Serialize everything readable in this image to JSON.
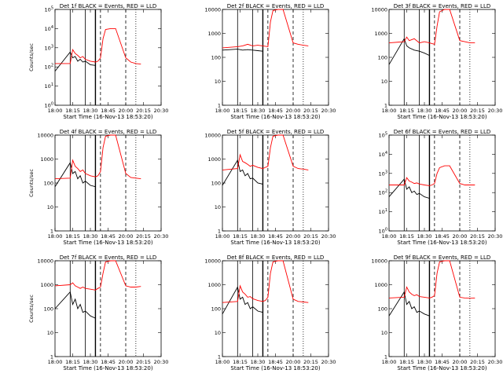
{
  "chart_data": [
    {
      "type": "line",
      "title": "Det 1f BLACK = Events, RED = LLD",
      "xlabel": "Start Time (16-Nov-13 18:53:20)",
      "ylabel": "Counts/sec",
      "yscale": "log",
      "x_ticks": [
        "18:00",
        "18:15",
        "18:30",
        "18:45",
        "20:00",
        "20:15",
        "20:30"
      ],
      "y_ticks": [
        "10^0",
        "10^1",
        "10^2",
        "10^3",
        "10^4",
        "10^5"
      ],
      "ylim": [
        1,
        100000
      ],
      "series": [
        {
          "color": "#000000",
          "x": [
            0,
            0.3,
            0.35,
            0.4,
            0.45,
            0.5,
            0.55,
            0.6,
            0.7,
            0.8
          ],
          "y": [
            60,
            600,
            300,
            350,
            200,
            250,
            180,
            200,
            130,
            120
          ]
        },
        {
          "color": "#ff0000",
          "x": [
            0,
            0.3,
            0.35,
            0.4,
            0.45,
            0.5,
            0.55,
            0.6,
            0.7,
            0.8,
            0.85,
            0.9,
            0.95,
            1.0,
            1.1,
            1.2,
            1.4,
            1.5,
            1.6,
            1.7
          ],
          "y": [
            150,
            150,
            800,
            500,
            400,
            300,
            350,
            250,
            200,
            180,
            200,
            300,
            3000,
            9000,
            10000,
            10000,
            300,
            180,
            150,
            140
          ]
        }
      ]
    },
    {
      "type": "line",
      "title": "Det 2f BLACK = Events, RED = LLD",
      "xlabel": "Start Time (16-Nov-13 18:53:20)",
      "ylabel": "",
      "yscale": "log",
      "x_ticks": [
        "18:00",
        "18:15",
        "18:30",
        "18:45",
        "20:00",
        "20:15",
        "20:30"
      ],
      "y_ticks": [
        "1",
        "10",
        "100",
        "1000",
        "10000"
      ],
      "ylim": [
        1,
        10000
      ],
      "series": [
        {
          "color": "#000000",
          "x": [
            0,
            0.3,
            0.4,
            0.5,
            0.6,
            0.7,
            0.8
          ],
          "y": [
            200,
            220,
            200,
            210,
            200,
            190,
            180
          ]
        },
        {
          "color": "#ff0000",
          "x": [
            0,
            0.3,
            0.4,
            0.5,
            0.6,
            0.7,
            0.8,
            0.9,
            0.95,
            1.0,
            1.1,
            1.2,
            1.4,
            1.5,
            1.6,
            1.7
          ],
          "y": [
            250,
            280,
            300,
            350,
            300,
            320,
            300,
            280,
            3000,
            9000,
            10000,
            10000,
            400,
            350,
            320,
            300
          ]
        }
      ]
    },
    {
      "type": "line",
      "title": "Det 3f BLACK = Events, RED = LLD",
      "xlabel": "Start Time (16-Nov-13 18:53:20)",
      "ylabel": "",
      "yscale": "log",
      "x_ticks": [
        "18:00",
        "18:15",
        "18:30",
        "18:45",
        "20:00",
        "20:15",
        "20:30"
      ],
      "y_ticks": [
        "1",
        "10",
        "100",
        "1000",
        "10000"
      ],
      "ylim": [
        1,
        10000
      ],
      "series": [
        {
          "color": "#000000",
          "x": [
            0,
            0.3,
            0.35,
            0.4,
            0.5,
            0.6,
            0.7,
            0.8
          ],
          "y": [
            50,
            600,
            300,
            250,
            200,
            180,
            150,
            120
          ]
        },
        {
          "color": "#ff0000",
          "x": [
            0,
            0.3,
            0.35,
            0.4,
            0.5,
            0.6,
            0.7,
            0.8,
            0.9,
            0.95,
            1.0,
            1.1,
            1.2,
            1.4,
            1.5,
            1.6,
            1.7
          ],
          "y": [
            400,
            450,
            700,
            500,
            600,
            400,
            450,
            400,
            350,
            2000,
            8000,
            10000,
            10000,
            500,
            450,
            400,
            400
          ]
        }
      ]
    },
    {
      "type": "line",
      "title": "Det 4f BLACK = Events, RED = LLD",
      "xlabel": "Start Time (16-Nov-13 18:53:20)",
      "ylabel": "Counts/sec",
      "yscale": "log",
      "x_ticks": [
        "18:00",
        "18:15",
        "18:30",
        "18:45",
        "20:00",
        "20:15",
        "20:30"
      ],
      "y_ticks": [
        "1",
        "10",
        "100",
        "1000",
        "10000"
      ],
      "ylim": [
        1,
        10000
      ],
      "series": [
        {
          "color": "#000000",
          "x": [
            0,
            0.3,
            0.35,
            0.4,
            0.45,
            0.5,
            0.55,
            0.6,
            0.7,
            0.8
          ],
          "y": [
            70,
            700,
            250,
            300,
            150,
            200,
            100,
            120,
            80,
            70
          ]
        },
        {
          "color": "#ff0000",
          "x": [
            0,
            0.3,
            0.35,
            0.4,
            0.45,
            0.5,
            0.55,
            0.6,
            0.7,
            0.8,
            0.85,
            0.9,
            0.95,
            1.0,
            1.1,
            1.2,
            1.4,
            1.5,
            1.6,
            1.7
          ],
          "y": [
            150,
            160,
            900,
            500,
            400,
            300,
            350,
            250,
            200,
            180,
            200,
            300,
            3000,
            9000,
            10000,
            10000,
            250,
            170,
            160,
            150
          ]
        }
      ]
    },
    {
      "type": "line",
      "title": "Det 5f BLACK = Events, RED = LLD",
      "xlabel": "Start Time (16-Nov-13 18:53:20)",
      "ylabel": "",
      "yscale": "log",
      "x_ticks": [
        "18:00",
        "18:15",
        "18:30",
        "18:45",
        "20:00",
        "20:15",
        "20:30"
      ],
      "y_ticks": [
        "1",
        "10",
        "100",
        "1000",
        "10000"
      ],
      "ylim": [
        1,
        10000
      ],
      "series": [
        {
          "color": "#000000",
          "x": [
            0,
            0.3,
            0.35,
            0.4,
            0.45,
            0.5,
            0.55,
            0.6,
            0.7,
            0.8
          ],
          "y": [
            80,
            900,
            300,
            350,
            200,
            250,
            150,
            160,
            100,
            90
          ]
        },
        {
          "color": "#ff0000",
          "x": [
            0,
            0.3,
            0.35,
            0.4,
            0.45,
            0.5,
            0.55,
            0.6,
            0.7,
            0.8,
            0.85,
            0.9,
            0.95,
            1.0,
            1.1,
            1.2,
            1.4,
            1.5,
            1.6,
            1.7
          ],
          "y": [
            350,
            400,
            1500,
            800,
            700,
            600,
            500,
            550,
            450,
            400,
            450,
            500,
            3000,
            9000,
            10000,
            10000,
            500,
            400,
            380,
            350
          ]
        }
      ]
    },
    {
      "type": "line",
      "title": "Det 6f BLACK = Events, RED = LLD",
      "xlabel": "Start Time (16-Nov-13 18:53:20)",
      "ylabel": "",
      "yscale": "log",
      "x_ticks": [
        "18:00",
        "18:15",
        "18:30",
        "18:45",
        "20:00",
        "20:15",
        "20:30"
      ],
      "y_ticks": [
        "10^0",
        "10^1",
        "10^2",
        "10^3",
        "10^4",
        "10^5"
      ],
      "ylim": [
        1,
        100000
      ],
      "series": [
        {
          "color": "#000000",
          "x": [
            0,
            0.3,
            0.35,
            0.4,
            0.45,
            0.5,
            0.55,
            0.6,
            0.7,
            0.8
          ],
          "y": [
            60,
            500,
            150,
            200,
            100,
            120,
            80,
            90,
            60,
            50
          ]
        },
        {
          "color": "#ff0000",
          "x": [
            0,
            0.3,
            0.35,
            0.4,
            0.45,
            0.5,
            0.55,
            0.6,
            0.7,
            0.8,
            0.85,
            0.9,
            0.95,
            1.0,
            1.1,
            1.2,
            1.4,
            1.5,
            1.6,
            1.7
          ],
          "y": [
            250,
            250,
            600,
            400,
            350,
            300,
            320,
            280,
            250,
            230,
            250,
            300,
            1000,
            2000,
            2500,
            2500,
            300,
            250,
            250,
            250
          ]
        }
      ]
    },
    {
      "type": "line",
      "title": "Det 7f BLACK = Events, RED = LLD",
      "xlabel": "Start Time (16-Nov-13 18:53:20)",
      "ylabel": "Counts/sec",
      "yscale": "log",
      "x_ticks": [
        "18:00",
        "18:15",
        "18:30",
        "18:45",
        "20:00",
        "20:15",
        "20:30"
      ],
      "y_ticks": [
        "1",
        "10",
        "100",
        "1000",
        "10000"
      ],
      "ylim": [
        1,
        10000
      ],
      "series": [
        {
          "color": "#000000",
          "x": [
            0,
            0.3,
            0.35,
            0.4,
            0.45,
            0.5,
            0.55,
            0.6,
            0.7,
            0.8
          ],
          "y": [
            100,
            500,
            150,
            250,
            100,
            150,
            70,
            80,
            50,
            40
          ]
        },
        {
          "color": "#ff0000",
          "x": [
            0,
            0.3,
            0.35,
            0.4,
            0.45,
            0.5,
            0.55,
            0.6,
            0.7,
            0.8,
            0.85,
            0.9,
            0.95,
            1.0,
            1.1,
            1.2,
            1.4,
            1.5,
            1.6,
            1.7
          ],
          "y": [
            900,
            1000,
            1200,
            900,
            800,
            700,
            800,
            700,
            650,
            600,
            700,
            800,
            3000,
            9000,
            10000,
            10000,
            900,
            800,
            800,
            850
          ]
        }
      ]
    },
    {
      "type": "line",
      "title": "Det 8f BLACK = Events, RED = LLD",
      "xlabel": "Start Time (16-Nov-13 18:53:20)",
      "ylabel": "",
      "yscale": "log",
      "x_ticks": [
        "18:00",
        "18:15",
        "18:30",
        "18:45",
        "20:00",
        "20:15",
        "20:30"
      ],
      "y_ticks": [
        "1",
        "10",
        "100",
        "1000",
        "10000"
      ],
      "ylim": [
        1,
        10000
      ],
      "series": [
        {
          "color": "#000000",
          "x": [
            0,
            0.3,
            0.35,
            0.4,
            0.45,
            0.5,
            0.55,
            0.6,
            0.7,
            0.8
          ],
          "y": [
            60,
            800,
            250,
            300,
            150,
            180,
            100,
            120,
            80,
            70
          ]
        },
        {
          "color": "#ff0000",
          "x": [
            0,
            0.3,
            0.35,
            0.4,
            0.45,
            0.5,
            0.55,
            0.6,
            0.7,
            0.8,
            0.85,
            0.9,
            0.95,
            1.0,
            1.1,
            1.2,
            1.4,
            1.5,
            1.6,
            1.7
          ],
          "y": [
            180,
            200,
            900,
            500,
            400,
            300,
            320,
            260,
            220,
            200,
            220,
            300,
            3000,
            9000,
            10000,
            10000,
            250,
            200,
            190,
            180
          ]
        }
      ]
    },
    {
      "type": "line",
      "title": "Det 9f BLACK = Events, RED = LLD",
      "xlabel": "Start Time (16-Nov-13 18:53:20)",
      "ylabel": "",
      "yscale": "log",
      "x_ticks": [
        "18:00",
        "18:15",
        "18:30",
        "18:45",
        "20:00",
        "20:15",
        "20:30"
      ],
      "y_ticks": [
        "1",
        "10",
        "100",
        "1000",
        "10000"
      ],
      "ylim": [
        1,
        10000
      ],
      "series": [
        {
          "color": "#000000",
          "x": [
            0,
            0.3,
            0.35,
            0.4,
            0.45,
            0.5,
            0.55,
            0.6,
            0.7,
            0.8
          ],
          "y": [
            50,
            500,
            150,
            200,
            100,
            120,
            70,
            80,
            60,
            50
          ]
        },
        {
          "color": "#ff0000",
          "x": [
            0,
            0.3,
            0.35,
            0.4,
            0.45,
            0.5,
            0.55,
            0.6,
            0.7,
            0.8,
            0.85,
            0.9,
            0.95,
            1.0,
            1.1,
            1.2,
            1.4,
            1.5,
            1.6,
            1.7
          ],
          "y": [
            280,
            300,
            800,
            500,
            400,
            350,
            380,
            320,
            300,
            280,
            300,
            350,
            3000,
            9000,
            10000,
            10000,
            300,
            280,
            270,
            280
          ]
        }
      ]
    }
  ]
}
